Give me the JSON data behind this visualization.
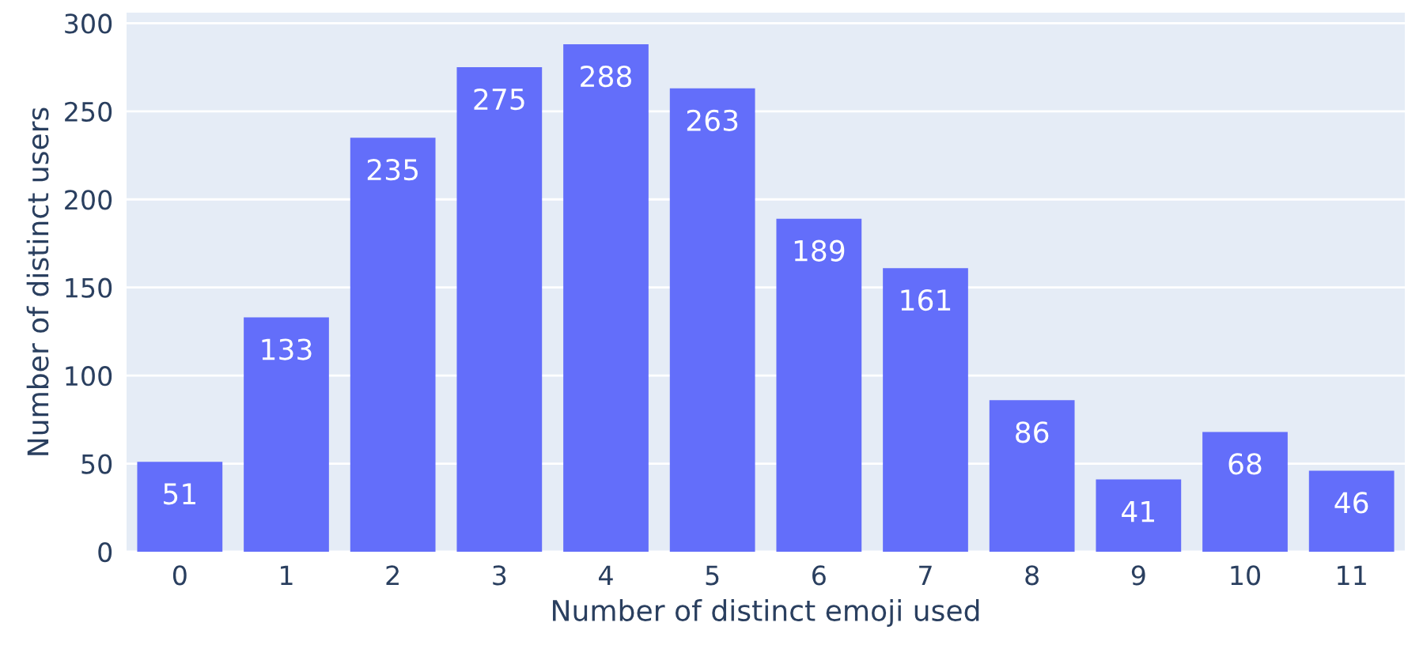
{
  "chart_data": {
    "type": "bar",
    "xlabel": "Number of distinct emoji used",
    "ylabel": "Number of distinct users",
    "categories": [
      "0",
      "1",
      "2",
      "3",
      "4",
      "5",
      "6",
      "7",
      "8",
      "9",
      "10",
      "11"
    ],
    "values": [
      51,
      133,
      235,
      275,
      288,
      263,
      189,
      161,
      86,
      41,
      68,
      46
    ],
    "color": "#636efa",
    "ylim": [
      0,
      306
    ],
    "yticks": [
      0,
      50,
      100,
      150,
      200,
      250,
      300
    ],
    "grid": "y",
    "data_labels": true
  }
}
